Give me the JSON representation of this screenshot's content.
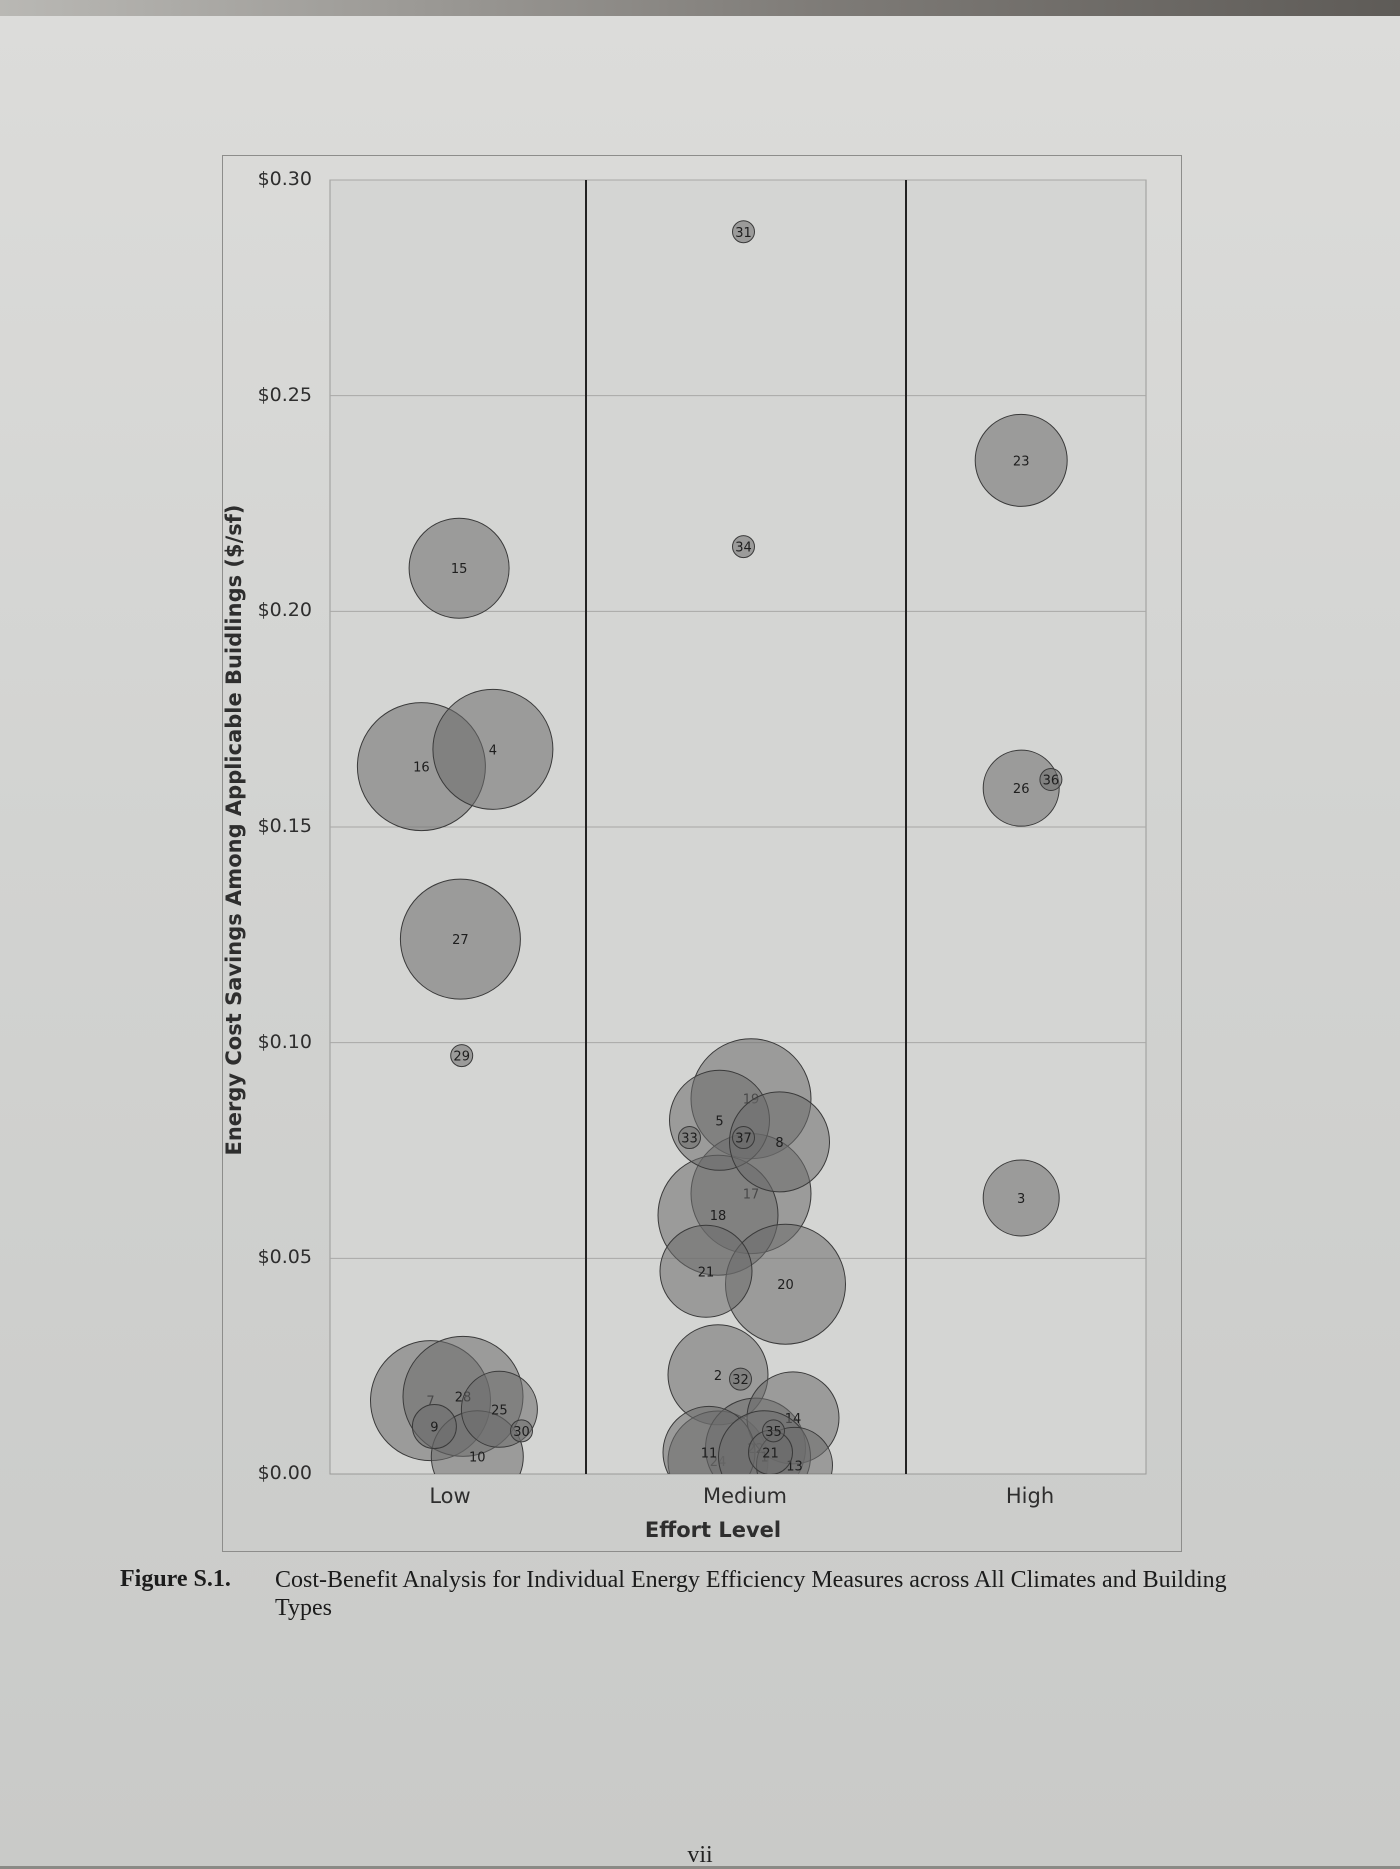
{
  "chart_data": {
    "type": "bubble",
    "title": "",
    "xlabel": "Effort Level",
    "ylabel": "Energy Cost Savings Among Applicable Buidlings ($/sf)",
    "categories": [
      "Low",
      "Medium",
      "High"
    ],
    "ylim": [
      0,
      0.3
    ],
    "y_ticks": [
      "$0.00",
      "$0.05",
      "$0.10",
      "$0.15",
      "$0.20",
      "$0.25",
      "$0.30"
    ],
    "grid": true,
    "points": [
      {
        "id": "15",
        "category": "Low",
        "offset": 0.07,
        "y": 0.21,
        "size": 5
      },
      {
        "id": "16",
        "category": "Low",
        "offset": -0.22,
        "y": 0.164,
        "size": 7
      },
      {
        "id": "4",
        "category": "Low",
        "offset": 0.33,
        "y": 0.168,
        "size": 6
      },
      {
        "id": "27",
        "category": "Low",
        "offset": 0.08,
        "y": 0.124,
        "size": 6
      },
      {
        "id": "29",
        "category": "Low",
        "offset": 0.09,
        "y": 0.097,
        "size": 1
      },
      {
        "id": "7",
        "category": "Low",
        "offset": -0.15,
        "y": 0.017,
        "size": 6
      },
      {
        "id": "9",
        "category": "Low",
        "offset": -0.12,
        "y": 0.011,
        "size": 2
      },
      {
        "id": "28",
        "category": "Low",
        "offset": 0.1,
        "y": 0.018,
        "size": 6
      },
      {
        "id": "10",
        "category": "Low",
        "offset": 0.21,
        "y": 0.004,
        "size": 4
      },
      {
        "id": "25",
        "category": "Low",
        "offset": 0.38,
        "y": 0.015,
        "size": 3
      },
      {
        "id": "30",
        "category": "Low",
        "offset": 0.55,
        "y": 0.01,
        "size": 1
      },
      {
        "id": "31",
        "category": "Medium",
        "offset": -0.01,
        "y": 0.288,
        "size": 1
      },
      {
        "id": "34",
        "category": "Medium",
        "offset": -0.01,
        "y": 0.215,
        "size": 1
      },
      {
        "id": "33",
        "category": "Medium",
        "offset": -0.37,
        "y": 0.078,
        "size": 1
      },
      {
        "id": "5",
        "category": "Medium",
        "offset": -0.17,
        "y": 0.082,
        "size": 5
      },
      {
        "id": "19",
        "category": "Medium",
        "offset": 0.04,
        "y": 0.087,
        "size": 6
      },
      {
        "id": "37",
        "category": "Medium",
        "offset": -0.01,
        "y": 0.078,
        "size": 1
      },
      {
        "id": "8",
        "category": "Medium",
        "offset": 0.23,
        "y": 0.077,
        "size": 5
      },
      {
        "id": "17",
        "category": "Medium",
        "offset": 0.04,
        "y": 0.065,
        "size": 6
      },
      {
        "id": "18",
        "category": "Medium",
        "offset": -0.18,
        "y": 0.06,
        "size": 6
      },
      {
        "id": "21",
        "category": "Medium",
        "offset": -0.26,
        "y": 0.047,
        "size": 4
      },
      {
        "id": "20",
        "category": "Medium",
        "offset": 0.27,
        "y": 0.044,
        "size": 6
      },
      {
        "id": "2",
        "category": "Medium",
        "offset": -0.18,
        "y": 0.023,
        "size": 5
      },
      {
        "id": "32",
        "category": "Medium",
        "offset": -0.03,
        "y": 0.022,
        "size": 1
      },
      {
        "id": "35",
        "category": "Medium",
        "offset": 0.19,
        "y": 0.01,
        "size": 1
      },
      {
        "id": "14",
        "category": "Medium",
        "offset": 0.32,
        "y": 0.013,
        "size": 4
      },
      {
        "id": "11",
        "category": "Medium",
        "offset": -0.24,
        "y": 0.005,
        "size": 4
      },
      {
        "id": "24",
        "category": "Medium",
        "offset": -0.18,
        "y": 0.003,
        "size": 5
      },
      {
        "id": "22",
        "category": "Medium",
        "offset": 0.07,
        "y": 0.006,
        "size": 5
      },
      {
        "id": "1",
        "category": "Medium",
        "offset": 0.13,
        "y": 0.004,
        "size": 4
      },
      {
        "id": "21",
        "category": "Medium",
        "offset": 0.17,
        "y": 0.005,
        "size": 2
      },
      {
        "id": "13",
        "category": "Medium",
        "offset": 0.33,
        "y": 0.002,
        "size": 3
      },
      {
        "id": "23",
        "category": "High",
        "offset": -0.08,
        "y": 0.235,
        "size": 4
      },
      {
        "id": "26",
        "category": "High",
        "offset": -0.08,
        "y": 0.159,
        "size": 3
      },
      {
        "id": "36",
        "category": "High",
        "offset": 0.19,
        "y": 0.161,
        "size": 1
      },
      {
        "id": "3",
        "category": "High",
        "offset": -0.08,
        "y": 0.064,
        "size": 3
      }
    ]
  },
  "caption": {
    "label": "Figure S.1.",
    "text": "Cost-Benefit Analysis for Individual Energy Efficiency Measures across All Climates and Building Types"
  },
  "page_number": "vii"
}
